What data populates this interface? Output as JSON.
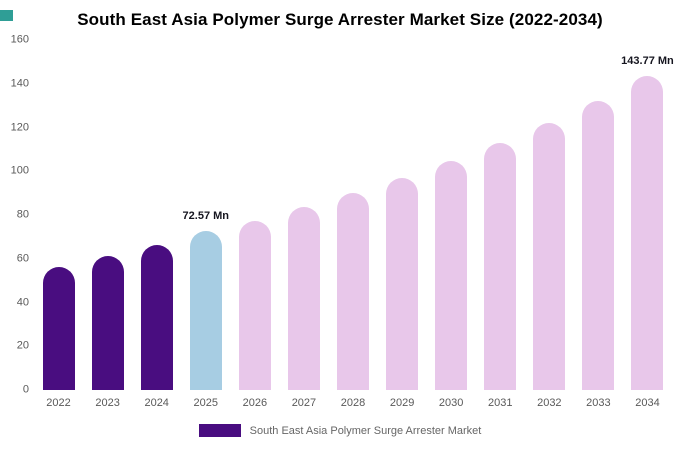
{
  "chart_data": {
    "type": "bar",
    "title": "South East Asia Polymer Surge Arrester Market Size (2022-2034)",
    "categories": [
      "2022",
      "2023",
      "2024",
      "2025",
      "2026",
      "2027",
      "2028",
      "2029",
      "2030",
      "2031",
      "2032",
      "2033",
      "2034"
    ],
    "series": [
      {
        "name": "South East Asia Polymer Surge Arrester Market",
        "values": [
          56.2,
          61.2,
          66.4,
          72.57,
          77.4,
          83.5,
          90.1,
          96.9,
          104.6,
          112.9,
          121.9,
          131.9,
          143.77
        ]
      }
    ],
    "unit": "Mn",
    "xlabel": "",
    "ylabel": "",
    "ylim": [
      0,
      160
    ],
    "ytick_step": 20,
    "grid": false,
    "legend_position": "bottom",
    "bar_colors": [
      "#490d80",
      "#490d80",
      "#490d80",
      "#a7cde3",
      "#e8c7ea",
      "#e8c7ea",
      "#e8c7ea",
      "#e8c7ea",
      "#e8c7ea",
      "#e8c7ea",
      "#e8c7ea",
      "#e8c7ea",
      "#e8c7ea"
    ],
    "annotations": [
      {
        "index": 3,
        "text": "72.57 Mn"
      },
      {
        "index": 12,
        "text": "143.77 Mn"
      }
    ],
    "legend": [
      {
        "label": "South East Asia Polymer Surge Arrester Market",
        "color": "#490d80"
      }
    ]
  },
  "accent": {
    "corner_color": "#2f9e96"
  }
}
